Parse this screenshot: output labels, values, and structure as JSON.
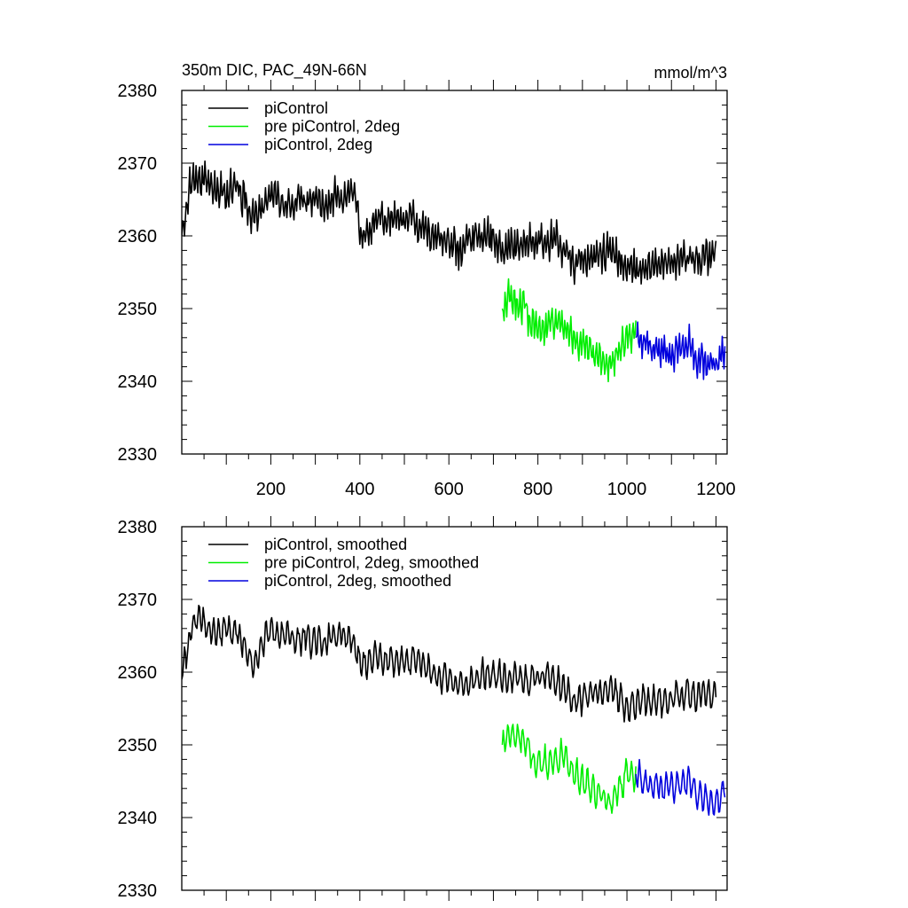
{
  "chart_data": [
    {
      "type": "line",
      "title": "350m DIC, PAC_49N-66N",
      "units": "mmol/m^3",
      "xlim": [
        0,
        1225
      ],
      "ylim": [
        2330,
        2380
      ],
      "yticks": [
        2330,
        2340,
        2350,
        2360,
        2370,
        2380
      ],
      "xticks": [
        200,
        400,
        600,
        800,
        1000,
        1200
      ],
      "show_xtick_labels": true,
      "legend_position": "top-left",
      "series": [
        {
          "name": "piControl",
          "color": "#000000",
          "x_start": 0,
          "x_end": 1200,
          "anchors": [
            [
              0,
              2360
            ],
            [
              20,
              2367
            ],
            [
              40,
              2368
            ],
            [
              60,
              2367
            ],
            [
              80,
              2366
            ],
            [
              100,
              2366
            ],
            [
              120,
              2367
            ],
            [
              140,
              2365
            ],
            [
              160,
              2362
            ],
            [
              180,
              2364
            ],
            [
              200,
              2366
            ],
            [
              220,
              2365
            ],
            [
              240,
              2364
            ],
            [
              260,
              2365
            ],
            [
              280,
              2365
            ],
            [
              300,
              2365
            ],
            [
              320,
              2364
            ],
            [
              340,
              2365
            ],
            [
              360,
              2365
            ],
            [
              380,
              2366
            ],
            [
              390,
              2366
            ],
            [
              400,
              2360
            ],
            [
              440,
              2362
            ],
            [
              480,
              2362
            ],
            [
              520,
              2362
            ],
            [
              560,
              2360
            ],
            [
              600,
              2359
            ],
            [
              620,
              2358
            ],
            [
              660,
              2360
            ],
            [
              700,
              2360
            ],
            [
              720,
              2358
            ],
            [
              760,
              2359
            ],
            [
              800,
              2359
            ],
            [
              840,
              2360
            ],
            [
              880,
              2356
            ],
            [
              920,
              2357
            ],
            [
              960,
              2358
            ],
            [
              1000,
              2355
            ],
            [
              1040,
              2356
            ],
            [
              1080,
              2356
            ],
            [
              1120,
              2357
            ],
            [
              1160,
              2357
            ],
            [
              1200,
              2358
            ]
          ],
          "noise_amp": 3.4,
          "noise_period": 7
        },
        {
          "name": "pre piControl, 2deg",
          "color": "#00ee00",
          "x_start": 720,
          "x_end": 1020,
          "anchors": [
            [
              720,
              2350
            ],
            [
              745,
              2352
            ],
            [
              770,
              2350
            ],
            [
              800,
              2347
            ],
            [
              830,
              2348
            ],
            [
              860,
              2348
            ],
            [
              880,
              2346
            ],
            [
              900,
              2345
            ],
            [
              920,
              2344
            ],
            [
              940,
              2343
            ],
            [
              960,
              2342
            ],
            [
              980,
              2344
            ],
            [
              1000,
              2346
            ],
            [
              1020,
              2347
            ]
          ],
          "noise_amp": 3.6,
          "noise_period": 7
        },
        {
          "name": "piControl, 2deg",
          "color": "#0000dd",
          "x_start": 1020,
          "x_end": 1220,
          "anchors": [
            [
              1020,
              2346
            ],
            [
              1060,
              2344
            ],
            [
              1100,
              2344
            ],
            [
              1140,
              2345
            ],
            [
              1160,
              2343
            ],
            [
              1200,
              2342
            ],
            [
              1220,
              2344
            ]
          ],
          "noise_amp": 3.2,
          "noise_period": 7
        }
      ]
    },
    {
      "type": "line",
      "title": "",
      "units": "",
      "xlim": [
        0,
        1225
      ],
      "ylim": [
        2330,
        2380
      ],
      "yticks": [
        2330,
        2340,
        2350,
        2360,
        2370,
        2380
      ],
      "xticks": [
        200,
        400,
        600,
        800,
        1000,
        1200
      ],
      "show_xtick_labels": false,
      "legend_position": "top-left",
      "series": [
        {
          "name": "piControl, smoothed",
          "color": "#000000",
          "x_start": 0,
          "x_end": 1200,
          "anchors": [
            [
              0,
              2359
            ],
            [
              20,
              2366
            ],
            [
              40,
              2368
            ],
            [
              60,
              2366
            ],
            [
              80,
              2365
            ],
            [
              100,
              2366
            ],
            [
              120,
              2366
            ],
            [
              140,
              2364
            ],
            [
              160,
              2361
            ],
            [
              180,
              2364
            ],
            [
              200,
              2366
            ],
            [
              220,
              2365
            ],
            [
              240,
              2365
            ],
            [
              260,
              2364
            ],
            [
              280,
              2365
            ],
            [
              300,
              2364
            ],
            [
              320,
              2364
            ],
            [
              340,
              2365
            ],
            [
              360,
              2365
            ],
            [
              380,
              2365
            ],
            [
              400,
              2361
            ],
            [
              440,
              2362
            ],
            [
              480,
              2361
            ],
            [
              520,
              2362
            ],
            [
              560,
              2360
            ],
            [
              600,
              2359
            ],
            [
              620,
              2358
            ],
            [
              660,
              2359
            ],
            [
              700,
              2360
            ],
            [
              720,
              2359
            ],
            [
              760,
              2359
            ],
            [
              800,
              2359
            ],
            [
              840,
              2359
            ],
            [
              880,
              2356
            ],
            [
              920,
              2357
            ],
            [
              960,
              2358
            ],
            [
              1000,
              2355
            ],
            [
              1040,
              2356
            ],
            [
              1080,
              2356
            ],
            [
              1120,
              2357
            ],
            [
              1160,
              2357
            ],
            [
              1200,
              2357
            ]
          ],
          "noise_amp": 2.6,
          "noise_period": 12
        },
        {
          "name": "pre piControl, 2deg, smoothed",
          "color": "#00ee00",
          "x_start": 720,
          "x_end": 1020,
          "anchors": [
            [
              720,
              2350
            ],
            [
              745,
              2352
            ],
            [
              770,
              2350
            ],
            [
              800,
              2347
            ],
            [
              830,
              2348
            ],
            [
              860,
              2348
            ],
            [
              880,
              2346
            ],
            [
              900,
              2345
            ],
            [
              920,
              2344
            ],
            [
              940,
              2343
            ],
            [
              960,
              2342
            ],
            [
              980,
              2344
            ],
            [
              1000,
              2346
            ],
            [
              1020,
              2346
            ]
          ],
          "noise_amp": 2.8,
          "noise_period": 12
        },
        {
          "name": "piControl, 2deg, smoothed",
          "color": "#0000dd",
          "x_start": 1020,
          "x_end": 1220,
          "anchors": [
            [
              1020,
              2346
            ],
            [
              1060,
              2344
            ],
            [
              1100,
              2344
            ],
            [
              1140,
              2345
            ],
            [
              1160,
              2343
            ],
            [
              1200,
              2342
            ],
            [
              1220,
              2344
            ]
          ],
          "noise_amp": 2.6,
          "noise_period": 12
        }
      ]
    }
  ]
}
